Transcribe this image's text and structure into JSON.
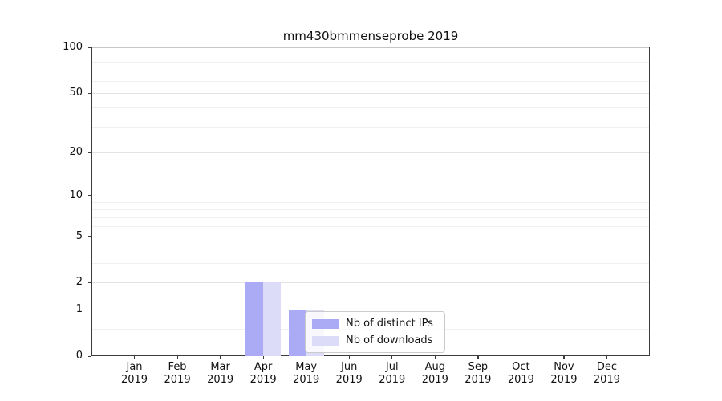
{
  "title": "mm430bmmenseprobe 2019",
  "chart_data": {
    "type": "bar",
    "title": "mm430bmmenseprobe 2019",
    "categories": [
      "Jan",
      "Feb",
      "Mar",
      "Apr",
      "May",
      "Jun",
      "Jul",
      "Aug",
      "Sep",
      "Oct",
      "Nov",
      "Dec"
    ],
    "category_year": "2019",
    "series": [
      {
        "name": "Nb of distinct IPs",
        "color": "#aaaaf5",
        "values": [
          0,
          0,
          0,
          2,
          1,
          0,
          0,
          0,
          0,
          0,
          0,
          0
        ]
      },
      {
        "name": "Nb of downloads",
        "color": "#dcdcf8",
        "values": [
          0,
          0,
          0,
          2,
          1,
          0,
          0,
          0,
          0,
          0,
          0,
          0
        ]
      }
    ],
    "xlabel": "",
    "ylabel": "",
    "yscale": "log1p",
    "ylim": [
      0,
      100
    ],
    "yticks": [
      0,
      1,
      2,
      5,
      10,
      20,
      50,
      100
    ],
    "minor_yticks": [
      0.5,
      3,
      4,
      6,
      7,
      8,
      9,
      30,
      40,
      60,
      70,
      80,
      90
    ],
    "grid": "on",
    "legend_position": "lower center"
  },
  "colors": {
    "background": "#ffffff",
    "spine": "#3c3c3c",
    "grid_minor": "#f0f0f0",
    "grid_major": "#e3e3e3",
    "text": "#111111",
    "series1": "#aaaaf5",
    "series2": "#dcdcf8"
  }
}
